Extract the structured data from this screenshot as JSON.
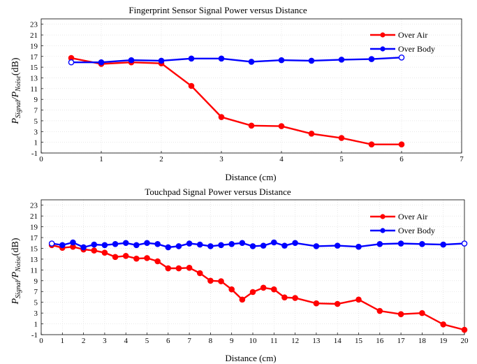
{
  "chart_data": [
    {
      "type": "line",
      "title": "Fingerprint Sensor Signal Power versus Distance",
      "xlabel": "Distance (cm)",
      "ylabel": {
        "p1": "P",
        "s1": "Signal",
        "mid": "/P",
        "s2": "Noise",
        "unit": "(dB)"
      },
      "xlim": [
        0,
        7
      ],
      "ylim": [
        -1,
        24
      ],
      "xticks": [
        "0",
        "1",
        "2",
        "3",
        "4",
        "5",
        "6",
        "7"
      ],
      "yticks": [
        "-1",
        "1",
        "3",
        "5",
        "7",
        "9",
        "11",
        "13",
        "15",
        "17",
        "19",
        "21",
        "23"
      ],
      "grid": true,
      "legend": "top-right",
      "series": [
        {
          "name": "Over Air",
          "color": "#ff0000",
          "x": [
            0.5,
            1,
            1.5,
            2,
            2.5,
            3,
            3.5,
            4,
            4.5,
            5,
            5.5,
            6
          ],
          "y": [
            16.7,
            15.6,
            15.9,
            15.7,
            11.5,
            5.7,
            4.1,
            4.0,
            2.6,
            1.8,
            0.6,
            0.6
          ]
        },
        {
          "name": "Over Body",
          "color": "#0000ff",
          "x": [
            0.5,
            1,
            1.5,
            2,
            2.5,
            3,
            3.5,
            4,
            4.5,
            5,
            5.5,
            6
          ],
          "y": [
            15.9,
            15.9,
            16.3,
            16.2,
            16.6,
            16.6,
            16.0,
            16.3,
            16.2,
            16.4,
            16.5,
            16.8
          ]
        }
      ]
    },
    {
      "type": "line",
      "title": "Touchpad Signal Power versus Distance",
      "xlabel": "Distance (cm)",
      "ylabel": {
        "p1": "P",
        "s1": "Signal",
        "mid": "/P",
        "s2": "Noise",
        "unit": "(dB)"
      },
      "xlim": [
        0,
        20
      ],
      "ylim": [
        -1,
        24
      ],
      "xticks": [
        "0",
        "1",
        "2",
        "3",
        "4",
        "5",
        "6",
        "7",
        "8",
        "9",
        "10",
        "11",
        "12",
        "13",
        "14",
        "15",
        "16",
        "17",
        "18",
        "19",
        "20"
      ],
      "yticks": [
        "-1",
        "1",
        "3",
        "5",
        "7",
        "9",
        "11",
        "13",
        "15",
        "17",
        "19",
        "21",
        "23"
      ],
      "grid": true,
      "legend": "top-right",
      "series": [
        {
          "name": "Over Air",
          "color": "#ff0000",
          "x": [
            0.5,
            1,
            1.5,
            2,
            2.5,
            3,
            3.5,
            4,
            4.5,
            5,
            5.5,
            6,
            6.5,
            7,
            7.5,
            8,
            8.5,
            9,
            9.5,
            10,
            10.5,
            11,
            11.5,
            12,
            13,
            14,
            15,
            16,
            17,
            18,
            19,
            20
          ],
          "y": [
            15.6,
            15.1,
            15.3,
            14.8,
            14.6,
            14.2,
            13.4,
            13.6,
            13.1,
            13.2,
            12.6,
            11.3,
            11.3,
            11.4,
            10.4,
            9.0,
            8.9,
            7.4,
            5.5,
            6.9,
            7.7,
            7.4,
            5.9,
            5.8,
            4.8,
            4.7,
            5.5,
            3.4,
            2.8,
            3.0,
            0.9,
            -0.1
          ]
        },
        {
          "name": "Over Body",
          "color": "#0000ff",
          "x": [
            0.5,
            1,
            1.5,
            2,
            2.5,
            3,
            3.5,
            4,
            4.5,
            5,
            5.5,
            6,
            6.5,
            7,
            7.5,
            8,
            8.5,
            9,
            9.5,
            10,
            10.5,
            11,
            11.5,
            12,
            13,
            14,
            15,
            16,
            17,
            18,
            19,
            20
          ],
          "y": [
            15.9,
            15.6,
            16.1,
            15.2,
            15.7,
            15.6,
            15.8,
            16.0,
            15.6,
            16.0,
            15.8,
            15.2,
            15.4,
            15.9,
            15.7,
            15.4,
            15.6,
            15.8,
            16.0,
            15.4,
            15.5,
            16.1,
            15.5,
            16.0,
            15.4,
            15.5,
            15.3,
            15.8,
            15.9,
            15.8,
            15.7,
            15.9
          ]
        }
      ]
    }
  ]
}
